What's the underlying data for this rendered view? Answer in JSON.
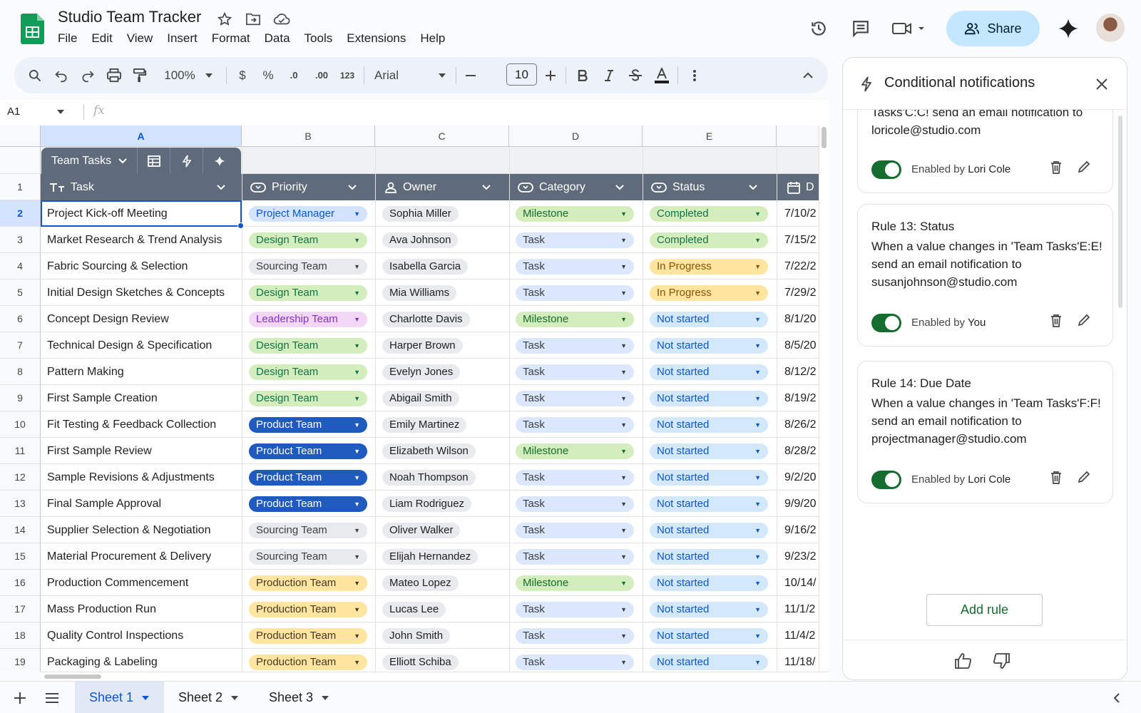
{
  "header": {
    "title": "Studio Team Tracker",
    "menu": [
      "File",
      "Edit",
      "View",
      "Insert",
      "Format",
      "Data",
      "Tools",
      "Extensions",
      "Help"
    ],
    "share_label": "Share"
  },
  "toolbar": {
    "zoom": "100%",
    "currency": "$",
    "percent": "%",
    "dec_decrease": ".0",
    "dec_increase": ".00",
    "number_format": "123",
    "font": "Arial",
    "font_size": "10"
  },
  "formula_bar": {
    "cell_ref": "A1",
    "fx": "fx"
  },
  "columns": [
    "A",
    "B",
    "C",
    "D",
    "E"
  ],
  "table": {
    "name": "Team Tasks",
    "headers": [
      "Task",
      "Priority",
      "Owner",
      "Category",
      "Status",
      "D"
    ],
    "rows": [
      {
        "num": "2",
        "task": "Project Kick-off Meeting",
        "priority": "Project Manager",
        "owner": "Sophia Miller",
        "category": "Milestone",
        "status": "Completed",
        "date": "7/10/2"
      },
      {
        "num": "3",
        "task": "Market Research & Trend Analysis",
        "priority": "Design Team",
        "owner": "Ava Johnson",
        "category": "Task",
        "status": "Completed",
        "date": "7/15/2"
      },
      {
        "num": "4",
        "task": "Fabric Sourcing & Selection",
        "priority": "Sourcing Team",
        "owner": "Isabella Garcia",
        "category": "Task",
        "status": "In Progress",
        "date": "7/22/2"
      },
      {
        "num": "5",
        "task": "Initial Design Sketches & Concepts",
        "priority": "Design Team",
        "owner": "Mia Williams",
        "category": "Task",
        "status": "In Progress",
        "date": "7/29/2"
      },
      {
        "num": "6",
        "task": "Concept Design Review",
        "priority": "Leadership Team",
        "owner": "Charlotte Davis",
        "category": "Milestone",
        "status": "Not started",
        "date": "8/1/20"
      },
      {
        "num": "7",
        "task": "Technical Design & Specification",
        "priority": "Design Team",
        "owner": "Harper Brown",
        "category": "Task",
        "status": "Not started",
        "date": "8/5/20"
      },
      {
        "num": "8",
        "task": "Pattern Making",
        "priority": "Design Team",
        "owner": "Evelyn Jones",
        "category": "Task",
        "status": "Not started",
        "date": "8/12/2"
      },
      {
        "num": "9",
        "task": "First Sample Creation",
        "priority": "Design Team",
        "owner": "Abigail Smith",
        "category": "Task",
        "status": "Not started",
        "date": "8/19/2"
      },
      {
        "num": "10",
        "task": "Fit Testing & Feedback Collection",
        "priority": "Product Team",
        "owner": "Emily Martinez",
        "category": "Task",
        "status": "Not started",
        "date": "8/26/2"
      },
      {
        "num": "11",
        "task": "First Sample Review",
        "priority": "Product Team",
        "owner": "Elizabeth Wilson",
        "category": "Milestone",
        "status": "Not started",
        "date": "8/28/2"
      },
      {
        "num": "12",
        "task": "Sample Revisions & Adjustments",
        "priority": "Product Team",
        "owner": "Noah Thompson",
        "category": "Task",
        "status": "Not started",
        "date": "9/2/20"
      },
      {
        "num": "13",
        "task": "Final Sample Approval",
        "priority": "Product Team",
        "owner": "Liam Rodriguez",
        "category": "Task",
        "status": "Not started",
        "date": "9/9/20"
      },
      {
        "num": "14",
        "task": "Supplier Selection & Negotiation",
        "priority": "Sourcing Team",
        "owner": "Oliver Walker",
        "category": "Task",
        "status": "Not started",
        "date": "9/16/2"
      },
      {
        "num": "15",
        "task": "Material Procurement & Delivery",
        "priority": "Sourcing Team",
        "owner": "Elijah Hernandez",
        "category": "Task",
        "status": "Not started",
        "date": "9/23/2"
      },
      {
        "num": "16",
        "task": "Production Commencement",
        "priority": "Production Team",
        "owner": "Mateo Lopez",
        "category": "Milestone",
        "status": "Not started",
        "date": "10/14/"
      },
      {
        "num": "17",
        "task": "Mass Production Run",
        "priority": "Production Team",
        "owner": "Lucas Lee",
        "category": "Task",
        "status": "Not started",
        "date": "11/1/2"
      },
      {
        "num": "18",
        "task": "Quality Control Inspections",
        "priority": "Production Team",
        "owner": "John Smith",
        "category": "Task",
        "status": "Not started",
        "date": "11/4/2"
      },
      {
        "num": "19",
        "task": "Packaging & Labeling",
        "priority": "Production Team",
        "owner": "Elliott Schiba",
        "category": "Task",
        "status": "Not started",
        "date": "11/18/"
      }
    ]
  },
  "row_one": "1",
  "chip_colors": {
    "Project Manager": [
      "#d3e3fd",
      "#0b57d0"
    ],
    "Design Team": [
      "#d4edbc",
      "#11734b"
    ],
    "Sourcing Team": [
      "#e8eaed",
      "#3c4043"
    ],
    "Leadership Team": [
      "#f3d7f6",
      "#8430ce"
    ],
    "Product Team": [
      "#1f5bbf",
      "#ffffff"
    ],
    "Production Team": [
      "#ffe5a0",
      "#473821"
    ],
    "Milestone": [
      "#d4edbc",
      "#146c2e"
    ],
    "Task": [
      "#dae7fd",
      "#3c4043"
    ],
    "Completed": [
      "#d4edbc",
      "#11734b"
    ],
    "In Progress": [
      "#ffe5a0",
      "#8a5300"
    ],
    "Not started": [
      "#d3e8fa",
      "#0b57d0"
    ]
  },
  "sheets": [
    "Sheet 1",
    "Sheet 2",
    "Sheet 3"
  ],
  "panel": {
    "title": "Conditional notifications",
    "partial_rule_text_1": "Tasks'C:C! send an email notification to",
    "partial_rule_text_2": "loricole@studio.com",
    "partial_enabled_prefix": "Enabled by",
    "partial_enabled_by": "Lori Cole",
    "rules": [
      {
        "title": "Rule 13: Status",
        "desc": "When a value changes in 'Team Tasks'E:E! send an email notification to susanjohnson@studio.com",
        "enabled_prefix": "Enabled by",
        "enabled_by": "You"
      },
      {
        "title": "Rule 14: Due Date",
        "desc": "When a value changes in 'Team Tasks'F:F! send an email notification to projectmanager@studio.com",
        "enabled_prefix": "Enabled by",
        "enabled_by": "Lori Cole"
      }
    ],
    "add_rule": "Add rule"
  }
}
